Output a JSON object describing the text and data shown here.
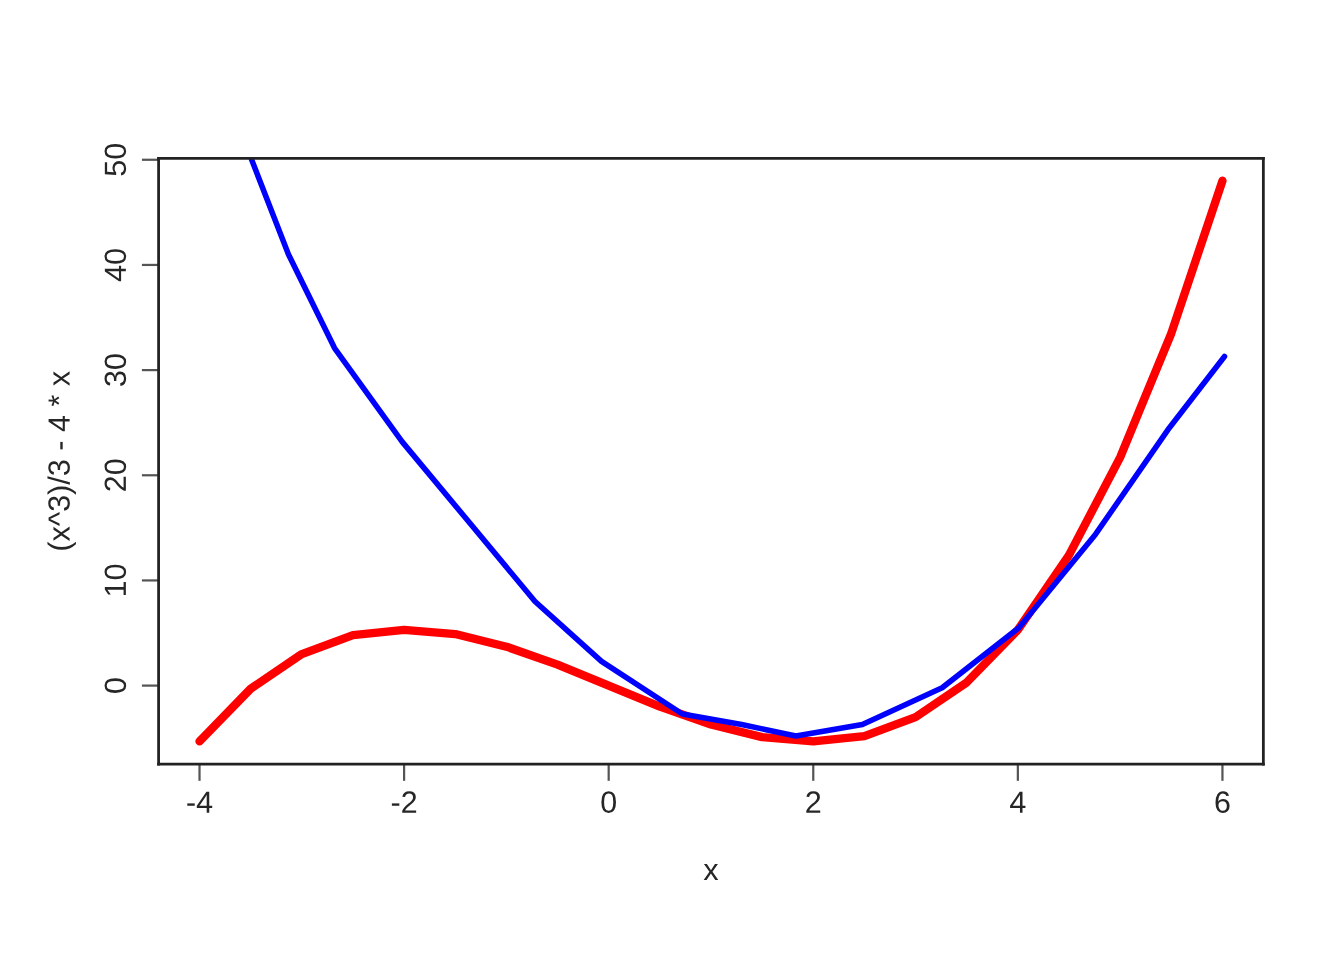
{
  "chart_data": {
    "type": "line",
    "xlabel": "x",
    "ylabel": "(x^3)/3 - 4 * x",
    "xlim": [
      -4.4,
      6.4
    ],
    "ylim": [
      -7.47,
      50.13
    ],
    "xticks": [
      -4,
      -2,
      0,
      2,
      4,
      6
    ],
    "yticks": [
      0,
      10,
      20,
      30,
      40,
      50
    ],
    "grid": false,
    "marker": "none",
    "line_style": "solid",
    "series": [
      {
        "color": "#ff0000",
        "x": [
          -4,
          -3.5,
          -3,
          -2.5,
          -2,
          -1.5,
          -1,
          -0.5,
          0,
          0.5,
          1,
          1.5,
          2,
          2.5,
          3,
          3.5,
          4,
          4.5,
          5,
          5.5,
          6
        ],
        "values": [
          -5.3,
          -0.3,
          3,
          4.8,
          5.3,
          4.9,
          3.7,
          2,
          0,
          -2,
          -3.7,
          -4.9,
          -5.3,
          -4.8,
          -3,
          0.3,
          5.3,
          12.4,
          21.7,
          33.5,
          48
        ]
      },
      {
        "color": "#0000ff",
        "x": [
          -3.49,
          -3.13,
          -2.68,
          -2.02,
          -1.37,
          -0.72,
          -0.07,
          0.72,
          1.3,
          1.83,
          2.48,
          3.26,
          4.01,
          4.76,
          5.48,
          6.02
        ],
        "values": [
          50,
          41,
          32.1,
          23.2,
          15.6,
          8,
          2.3,
          -2.7,
          -3.7,
          -4.8,
          -3.7,
          -0.2,
          5.5,
          14.4,
          24.5,
          31.3
        ]
      }
    ]
  }
}
